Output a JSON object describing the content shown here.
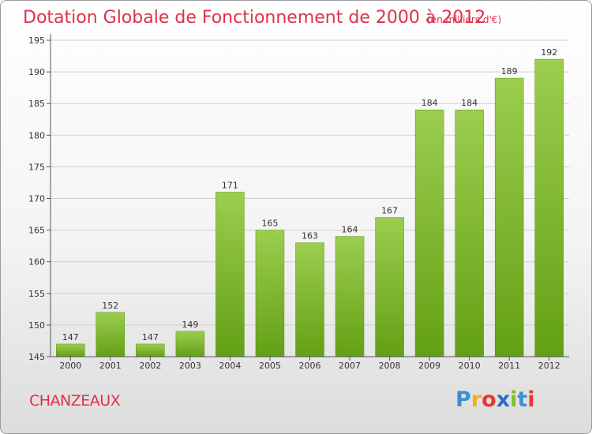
{
  "chart_data": {
    "type": "bar",
    "title": "Dotation Globale de Fonctionnement de 2000 à 2012",
    "subtitle": "(en milliers d'€)",
    "categories": [
      "2000",
      "2001",
      "2002",
      "2003",
      "2004",
      "2005",
      "2006",
      "2007",
      "2008",
      "2009",
      "2010",
      "2011",
      "2012"
    ],
    "values": [
      147,
      152,
      147,
      149,
      171,
      165,
      163,
      164,
      167,
      184,
      184,
      189,
      192
    ],
    "ylim": [
      145,
      195
    ],
    "yticks": [
      145,
      150,
      155,
      160,
      165,
      170,
      175,
      180,
      185,
      190,
      195
    ],
    "grid": true,
    "bar_color_top": "#9ccd4f",
    "bar_color_bottom": "#63a015"
  },
  "commune": "CHANZEAUX",
  "logo": {
    "letters": [
      "P",
      "r",
      "o",
      "x",
      "i",
      "t",
      "i"
    ],
    "colors": [
      "#3a8fd6",
      "#f2b01e",
      "#e8372c",
      "#2a6fc4",
      "#7fbf2a",
      "#3a8fd6",
      "#e8372c"
    ]
  }
}
